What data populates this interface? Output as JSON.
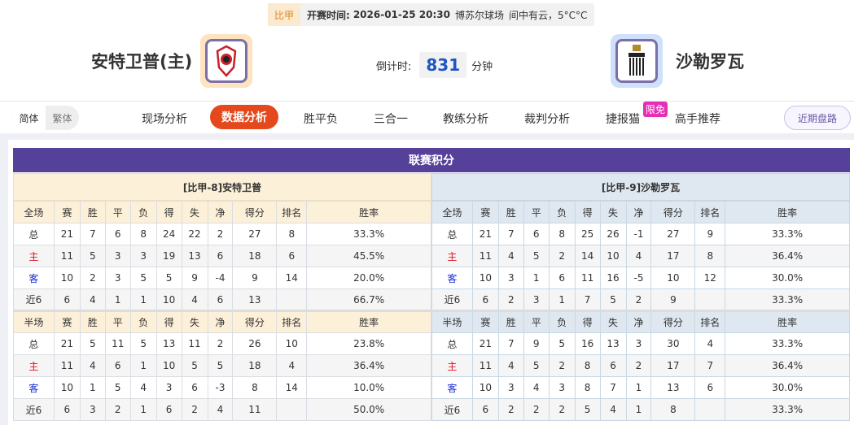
{
  "match": {
    "league": "比甲",
    "start_label": "开赛时间:",
    "start_time": "2026-01-25 20:30",
    "venue": "博苏尔球场",
    "weather": "间中有云，5°C°C"
  },
  "home": {
    "name": "安特卫普(主)",
    "logo": "antwerp-crest"
  },
  "away": {
    "name": "沙勒罗瓦",
    "logo": "charleroi-crest"
  },
  "countdown": {
    "label": "倒计时:",
    "value": "831",
    "unit": "分钟"
  },
  "lang": {
    "simplified": "简体",
    "traditional": "繁体"
  },
  "nav": {
    "items": [
      "现场分析",
      "数据分析",
      "胜平负",
      "三合一",
      "教练分析",
      "裁判分析",
      "捷报猫",
      "高手推荐"
    ],
    "active": "数据分析",
    "badge": "限免",
    "right_button": "近期盘路"
  },
  "colors": {
    "title_bar": "#55409a",
    "active_tab": "#e5481c",
    "home_label": "#e0141e",
    "away_label": "#1a2fd6"
  },
  "standings": {
    "title": "联赛积分",
    "columns": [
      "赛",
      "胜",
      "平",
      "负",
      "得",
      "失",
      "净",
      "得分",
      "排名",
      "胜率"
    ],
    "home": {
      "caption": "[比甲-8]安特卫普",
      "full": {
        "label": "全场",
        "rows": [
          [
            "总",
            "21",
            "7",
            "6",
            "8",
            "24",
            "22",
            "2",
            "27",
            "8",
            "33.3%"
          ],
          [
            "主",
            "11",
            "5",
            "3",
            "3",
            "19",
            "13",
            "6",
            "18",
            "6",
            "45.5%"
          ],
          [
            "客",
            "10",
            "2",
            "3",
            "5",
            "5",
            "9",
            "-4",
            "9",
            "14",
            "20.0%"
          ],
          [
            "近6",
            "6",
            "4",
            "1",
            "1",
            "10",
            "4",
            "6",
            "13",
            "",
            "66.7%"
          ]
        ]
      },
      "half": {
        "label": "半场",
        "rows": [
          [
            "总",
            "21",
            "5",
            "11",
            "5",
            "13",
            "11",
            "2",
            "26",
            "10",
            "23.8%"
          ],
          [
            "主",
            "11",
            "4",
            "6",
            "1",
            "10",
            "5",
            "5",
            "18",
            "4",
            "36.4%"
          ],
          [
            "客",
            "10",
            "1",
            "5",
            "4",
            "3",
            "6",
            "-3",
            "8",
            "14",
            "10.0%"
          ],
          [
            "近6",
            "6",
            "3",
            "2",
            "1",
            "6",
            "2",
            "4",
            "11",
            "",
            "50.0%"
          ]
        ]
      }
    },
    "away": {
      "caption": "[比甲-9]沙勒罗瓦",
      "full": {
        "label": "全场",
        "rows": [
          [
            "总",
            "21",
            "7",
            "6",
            "8",
            "25",
            "26",
            "-1",
            "27",
            "9",
            "33.3%"
          ],
          [
            "主",
            "11",
            "4",
            "5",
            "2",
            "14",
            "10",
            "4",
            "17",
            "8",
            "36.4%"
          ],
          [
            "客",
            "10",
            "3",
            "1",
            "6",
            "11",
            "16",
            "-5",
            "10",
            "12",
            "30.0%"
          ],
          [
            "近6",
            "6",
            "2",
            "3",
            "1",
            "7",
            "5",
            "2",
            "9",
            "",
            "33.3%"
          ]
        ]
      },
      "half": {
        "label": "半场",
        "rows": [
          [
            "总",
            "21",
            "7",
            "9",
            "5",
            "16",
            "13",
            "3",
            "30",
            "4",
            "33.3%"
          ],
          [
            "主",
            "11",
            "4",
            "5",
            "2",
            "8",
            "6",
            "2",
            "17",
            "7",
            "36.4%"
          ],
          [
            "客",
            "10",
            "3",
            "4",
            "3",
            "8",
            "7",
            "1",
            "13",
            "6",
            "30.0%"
          ],
          [
            "近6",
            "6",
            "2",
            "2",
            "2",
            "5",
            "4",
            "1",
            "8",
            "",
            "33.3%"
          ]
        ]
      }
    }
  }
}
